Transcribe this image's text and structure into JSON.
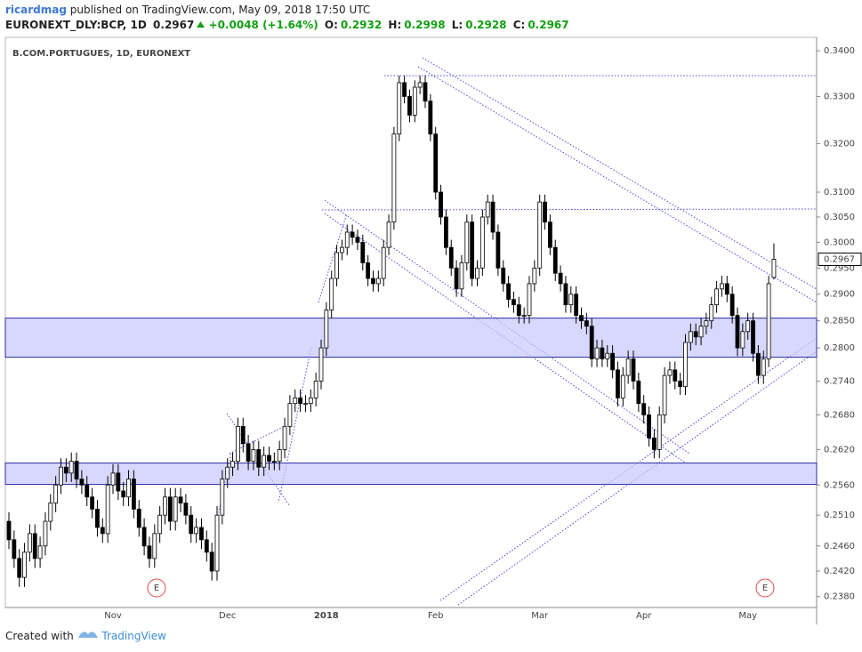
{
  "header": {
    "author": "ricardmag",
    "published": "published on TradingView.com, May 09, 2018 17:50 UTC",
    "symbol": "EURONEXT_DLY:BCP, 1D",
    "change": "+0.0048 (+1.64%)",
    "ohlc_labels": [
      "O:",
      "H:",
      "L:",
      "C:"
    ]
  },
  "footer": {
    "created": "Created with",
    "brand": "TradingView"
  },
  "chart_data": {
    "type": "candlestick",
    "title": "B.COM.PORTUGUES, 1D, EURONEXT",
    "log_scale": true,
    "up_color": "#ffffff",
    "down_color": "#000000",
    "zone_color": "#c8c8ff",
    "ylim": [
      0.2363,
      0.343
    ],
    "yticks": [
      {
        "value": 0.34,
        "label": "0.3400"
      },
      {
        "value": 0.33,
        "label": "0.3300"
      },
      {
        "value": 0.32,
        "label": "0.3200"
      },
      {
        "value": 0.31,
        "label": "0.3100"
      },
      {
        "value": 0.305,
        "label": "0.3050"
      },
      {
        "value": 0.3,
        "label": "0.3000"
      },
      {
        "value": 0.295,
        "label": "0.2950"
      },
      {
        "value": 0.29,
        "label": "0.2900"
      },
      {
        "value": 0.285,
        "label": "0.2850"
      },
      {
        "value": 0.28,
        "label": "0.2800"
      },
      {
        "value": 0.274,
        "label": "0.2740"
      },
      {
        "value": 0.268,
        "label": "0.2680"
      },
      {
        "value": 0.262,
        "label": "0.2620"
      },
      {
        "value": 0.256,
        "label": "0.2560"
      },
      {
        "value": 0.251,
        "label": "0.2510"
      },
      {
        "value": 0.246,
        "label": "0.2460"
      },
      {
        "value": 0.242,
        "label": "0.2420"
      },
      {
        "value": 0.238,
        "label": "0.2380"
      }
    ],
    "zones": [
      [
        0.2855,
        0.2783
      ],
      [
        0.2597,
        0.2561
      ]
    ],
    "events": [
      "E",
      "E"
    ],
    "categories": [
      null,
      null,
      null,
      null,
      null,
      null,
      null,
      null,
      null,
      null,
      null,
      null,
      null,
      null,
      null,
      null,
      null,
      null,
      null,
      null,
      "Nov",
      null,
      null,
      null,
      null,
      null,
      null,
      null,
      null,
      null,
      null,
      null,
      null,
      null,
      null,
      null,
      null,
      null,
      null,
      null,
      null,
      null,
      "Dec",
      null,
      null,
      null,
      null,
      null,
      null,
      null,
      null,
      null,
      null,
      null,
      null,
      null,
      null,
      null,
      null,
      null,
      null,
      "2018",
      null,
      null,
      null,
      null,
      null,
      null,
      null,
      null,
      null,
      null,
      null,
      null,
      null,
      null,
      null,
      null,
      null,
      null,
      null,
      null,
      "Feb",
      null,
      null,
      null,
      null,
      null,
      null,
      null,
      null,
      null,
      null,
      null,
      null,
      null,
      null,
      null,
      null,
      null,
      null,
      null,
      "Mar",
      null,
      null,
      null,
      null,
      null,
      null,
      null,
      null,
      null,
      null,
      null,
      null,
      null,
      null,
      null,
      null,
      null,
      null,
      null,
      "Apr",
      null,
      null,
      null,
      null,
      null,
      null,
      null,
      null,
      null,
      null,
      null,
      null,
      null,
      null,
      null,
      null,
      null,
      null,
      null,
      "May",
      null,
      null,
      null,
      null,
      null
    ],
    "candles": [
      [
        0.25,
        0.2515,
        0.2455,
        0.247
      ],
      [
        0.247,
        0.2485,
        0.2425,
        0.244
      ],
      [
        0.244,
        0.2455,
        0.2395,
        0.241
      ],
      [
        0.241,
        0.2465,
        0.2395,
        0.245
      ],
      [
        0.245,
        0.2495,
        0.2435,
        0.248
      ],
      [
        0.248,
        0.2495,
        0.2425,
        0.244
      ],
      [
        0.244,
        0.2475,
        0.2425,
        0.246
      ],
      [
        0.246,
        0.2515,
        0.2445,
        0.25
      ],
      [
        0.25,
        0.2545,
        0.2485,
        0.253
      ],
      [
        0.253,
        0.2575,
        0.2515,
        0.256
      ],
      [
        0.256,
        0.2605,
        0.2545,
        0.259
      ],
      [
        0.259,
        0.2605,
        0.2565,
        0.258
      ],
      [
        0.258,
        0.2615,
        0.2565,
        0.26
      ],
      [
        0.26,
        0.2615,
        0.2555,
        0.257
      ],
      [
        0.257,
        0.2585,
        0.2545,
        0.256
      ],
      [
        0.256,
        0.2575,
        0.2525,
        0.254
      ],
      [
        0.254,
        0.2555,
        0.2505,
        0.252
      ],
      [
        0.252,
        0.2535,
        0.2475,
        0.249
      ],
      [
        0.249,
        0.2505,
        0.2465,
        0.248
      ],
      [
        0.248,
        0.2575,
        0.2465,
        0.256
      ],
      [
        0.256,
        0.2595,
        0.2545,
        0.258
      ],
      [
        0.258,
        0.2595,
        0.2535,
        0.255
      ],
      [
        0.255,
        0.2565,
        0.2525,
        0.254
      ],
      [
        0.254,
        0.2585,
        0.2525,
        0.257
      ],
      [
        0.257,
        0.2585,
        0.2505,
        0.252
      ],
      [
        0.252,
        0.2535,
        0.2475,
        0.249
      ],
      [
        0.249,
        0.2505,
        0.2445,
        0.246
      ],
      [
        0.246,
        0.2475,
        0.2425,
        0.244
      ],
      [
        0.244,
        0.2495,
        0.2425,
        0.248
      ],
      [
        0.248,
        0.2525,
        0.2465,
        0.251
      ],
      [
        0.251,
        0.2555,
        0.2495,
        0.254
      ],
      [
        0.254,
        0.2555,
        0.2485,
        0.25
      ],
      [
        0.25,
        0.2555,
        0.2485,
        0.254
      ],
      [
        0.254,
        0.2555,
        0.2515,
        0.253
      ],
      [
        0.253,
        0.2545,
        0.2495,
        0.251
      ],
      [
        0.251,
        0.2525,
        0.2465,
        0.248
      ],
      [
        0.248,
        0.2505,
        0.2465,
        0.249
      ],
      [
        0.249,
        0.2505,
        0.2455,
        0.247
      ],
      [
        0.247,
        0.2485,
        0.2435,
        0.245
      ],
      [
        0.245,
        0.2465,
        0.2405,
        0.242
      ],
      [
        0.242,
        0.2525,
        0.2405,
        0.251
      ],
      [
        0.251,
        0.2585,
        0.2495,
        0.257
      ],
      [
        0.257,
        0.2605,
        0.2555,
        0.259
      ],
      [
        0.259,
        0.2615,
        0.2575,
        0.26
      ],
      [
        0.26,
        0.2675,
        0.2585,
        0.266
      ],
      [
        0.266,
        0.2675,
        0.2615,
        0.263
      ],
      [
        0.263,
        0.2645,
        0.2585,
        0.26
      ],
      [
        0.26,
        0.2635,
        0.2585,
        0.262
      ],
      [
        0.262,
        0.2635,
        0.2575,
        0.259
      ],
      [
        0.259,
        0.2625,
        0.2575,
        0.261
      ],
      [
        0.261,
        0.2625,
        0.2585,
        0.26
      ],
      [
        0.26,
        0.2615,
        0.2585,
        0.26
      ],
      [
        0.26,
        0.2635,
        0.2585,
        0.262
      ],
      [
        0.262,
        0.2675,
        0.2605,
        0.266
      ],
      [
        0.266,
        0.2715,
        0.2645,
        0.27
      ],
      [
        0.27,
        0.2725,
        0.2685,
        0.271
      ],
      [
        0.271,
        0.2725,
        0.2685,
        0.27
      ],
      [
        0.27,
        0.2715,
        0.2685,
        0.27
      ],
      [
        0.27,
        0.2725,
        0.2685,
        0.271
      ],
      [
        0.271,
        0.2755,
        0.2695,
        0.274
      ],
      [
        0.274,
        0.2815,
        0.2725,
        0.28
      ],
      [
        0.28,
        0.2885,
        0.2785,
        0.287
      ],
      [
        0.287,
        0.2945,
        0.2855,
        0.293
      ],
      [
        0.293,
        0.2995,
        0.2915,
        0.298
      ],
      [
        0.298,
        0.3005,
        0.2965,
        0.299
      ],
      [
        0.299,
        0.3035,
        0.2975,
        0.302
      ],
      [
        0.302,
        0.3035,
        0.2995,
        0.301
      ],
      [
        0.301,
        0.3025,
        0.2985,
        0.3
      ],
      [
        0.3,
        0.3015,
        0.2945,
        0.296
      ],
      [
        0.296,
        0.2975,
        0.2915,
        0.293
      ],
      [
        0.293,
        0.2945,
        0.2905,
        0.292
      ],
      [
        0.292,
        0.2945,
        0.2905,
        0.293
      ],
      [
        0.293,
        0.3005,
        0.2915,
        0.299
      ],
      [
        0.299,
        0.3055,
        0.2975,
        0.304
      ],
      [
        0.304,
        0.3235,
        0.3025,
        0.322
      ],
      [
        0.322,
        0.3345,
        0.3205,
        0.333
      ],
      [
        0.333,
        0.3345,
        0.3285,
        0.33
      ],
      [
        0.33,
        0.3315,
        0.3245,
        0.326
      ],
      [
        0.326,
        0.3335,
        0.3245,
        0.332
      ],
      [
        0.332,
        0.3345,
        0.3305,
        0.333
      ],
      [
        0.333,
        0.3345,
        0.3275,
        0.329
      ],
      [
        0.329,
        0.3305,
        0.3205,
        0.322
      ],
      [
        0.322,
        0.3235,
        0.3085,
        0.31
      ],
      [
        0.31,
        0.3115,
        0.3035,
        0.305
      ],
      [
        0.305,
        0.3065,
        0.2975,
        0.299
      ],
      [
        0.299,
        0.3005,
        0.2935,
        0.295
      ],
      [
        0.295,
        0.2965,
        0.2895,
        0.291
      ],
      [
        0.291,
        0.2975,
        0.2895,
        0.296
      ],
      [
        0.296,
        0.3055,
        0.2945,
        0.304
      ],
      [
        0.304,
        0.3055,
        0.2915,
        0.293
      ],
      [
        0.293,
        0.2965,
        0.2915,
        0.295
      ],
      [
        0.295,
        0.3065,
        0.2935,
        0.305
      ],
      [
        0.305,
        0.3095,
        0.3035,
        0.308
      ],
      [
        0.308,
        0.3095,
        0.3005,
        0.302
      ],
      [
        0.302,
        0.3035,
        0.2935,
        0.295
      ],
      [
        0.295,
        0.2965,
        0.2905,
        0.292
      ],
      [
        0.292,
        0.2935,
        0.2875,
        0.289
      ],
      [
        0.289,
        0.2905,
        0.2865,
        0.288
      ],
      [
        0.288,
        0.2895,
        0.2845,
        0.286
      ],
      [
        0.286,
        0.2875,
        0.2845,
        0.286
      ],
      [
        0.286,
        0.2935,
        0.2845,
        0.292
      ],
      [
        0.292,
        0.2965,
        0.2905,
        0.295
      ],
      [
        0.295,
        0.3095,
        0.2935,
        0.308
      ],
      [
        0.308,
        0.3095,
        0.3025,
        0.304
      ],
      [
        0.304,
        0.3055,
        0.2975,
        0.299
      ],
      [
        0.299,
        0.3005,
        0.2925,
        0.294
      ],
      [
        0.294,
        0.2955,
        0.2905,
        0.292
      ],
      [
        0.292,
        0.2935,
        0.2865,
        0.288
      ],
      [
        0.288,
        0.2915,
        0.2865,
        0.29
      ],
      [
        0.29,
        0.2915,
        0.2845,
        0.286
      ],
      [
        0.286,
        0.2875,
        0.2835,
        0.285
      ],
      [
        0.285,
        0.2865,
        0.2825,
        0.284
      ],
      [
        0.284,
        0.2855,
        0.2765,
        0.278
      ],
      [
        0.278,
        0.2815,
        0.2765,
        0.28
      ],
      [
        0.28,
        0.2815,
        0.2765,
        0.278
      ],
      [
        0.278,
        0.2805,
        0.2765,
        0.279
      ],
      [
        0.279,
        0.2805,
        0.2745,
        0.276
      ],
      [
        0.276,
        0.2775,
        0.2695,
        0.271
      ],
      [
        0.271,
        0.2765,
        0.2695,
        0.275
      ],
      [
        0.275,
        0.2795,
        0.2735,
        0.278
      ],
      [
        0.278,
        0.2795,
        0.2725,
        0.274
      ],
      [
        0.274,
        0.2755,
        0.2685,
        0.27
      ],
      [
        0.27,
        0.2715,
        0.2665,
        0.268
      ],
      [
        0.268,
        0.2695,
        0.2625,
        0.264
      ],
      [
        0.264,
        0.2655,
        0.2605,
        0.262
      ],
      [
        0.262,
        0.2695,
        0.2605,
        0.268
      ],
      [
        0.268,
        0.2765,
        0.2665,
        0.275
      ],
      [
        0.275,
        0.2775,
        0.2735,
        0.276
      ],
      [
        0.276,
        0.2775,
        0.2725,
        0.274
      ],
      [
        0.274,
        0.2755,
        0.2715,
        0.273
      ],
      [
        0.273,
        0.2825,
        0.2715,
        0.281
      ],
      [
        0.281,
        0.2845,
        0.2795,
        0.283
      ],
      [
        0.283,
        0.2845,
        0.2805,
        0.282
      ],
      [
        0.282,
        0.2855,
        0.2805,
        0.284
      ],
      [
        0.284,
        0.2865,
        0.2825,
        0.285
      ],
      [
        0.285,
        0.2895,
        0.2835,
        0.288
      ],
      [
        0.288,
        0.2925,
        0.2865,
        0.291
      ],
      [
        0.291,
        0.2935,
        0.2895,
        0.292
      ],
      [
        0.292,
        0.2935,
        0.2885,
        0.29
      ],
      [
        0.29,
        0.2915,
        0.2845,
        0.286
      ],
      [
        0.286,
        0.2875,
        0.2785,
        0.28
      ],
      [
        0.28,
        0.2845,
        0.2785,
        0.283
      ],
      [
        0.283,
        0.2865,
        0.2815,
        0.285
      ],
      [
        0.285,
        0.2865,
        0.2775,
        0.279
      ],
      [
        0.279,
        0.2805,
        0.2735,
        0.275
      ],
      [
        0.275,
        0.2795,
        0.2735,
        0.278
      ],
      [
        0.278,
        0.2935,
        0.2765,
        0.292
      ],
      [
        0.2932,
        0.2998,
        0.2928,
        0.2967
      ]
    ]
  }
}
